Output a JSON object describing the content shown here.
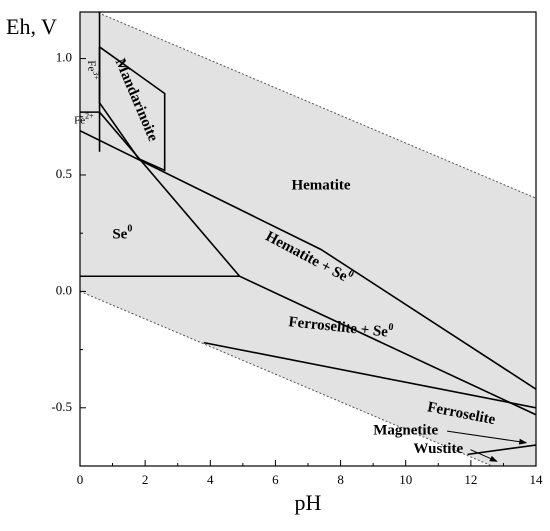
{
  "chart_data": {
    "type": "area",
    "xlabel": "pH",
    "ylabel": "Eh, V",
    "xlim": [
      0,
      14
    ],
    "ylim": [
      -0.75,
      1.2
    ],
    "x_ticks": [
      0,
      2,
      4,
      6,
      8,
      10,
      12,
      14
    ],
    "x_tick_labels": [
      "0",
      "2",
      "4",
      "6",
      "8",
      "10",
      "12",
      "14"
    ],
    "y_ticks": [
      1.0,
      0.5,
      0.0,
      -0.5
    ],
    "y_tick_labels": [
      "1.0",
      "0.5",
      "0.0",
      "-0.5"
    ],
    "grid": false,
    "stability_field": {
      "upper": [
        [
          0,
          1.23
        ],
        [
          14,
          0.4
        ]
      ],
      "lower": [
        [
          0,
          0.0
        ],
        [
          14,
          -0.83
        ]
      ],
      "fill": "#e2e2e2"
    },
    "boundaries": [
      {
        "points": [
          [
            0.6,
            1.24
          ],
          [
            0.6,
            0.6
          ]
        ]
      },
      {
        "points": [
          [
            0.6,
            1.05
          ],
          [
            2.6,
            0.85
          ],
          [
            2.6,
            0.52
          ],
          [
            1.8,
            0.57
          ],
          [
            0.6,
            0.81
          ],
          [
            0.6,
            1.05
          ]
        ]
      },
      {
        "points": [
          [
            0,
            0.77
          ],
          [
            0.6,
            0.77
          ]
        ]
      },
      {
        "points": [
          [
            0,
            0.69
          ],
          [
            7.4,
            0.18
          ],
          [
            14,
            -0.42
          ]
        ]
      },
      {
        "points": [
          [
            0,
            0.065
          ],
          [
            4.9,
            0.065
          ]
        ]
      },
      {
        "points": [
          [
            0.6,
            0.77
          ],
          [
            4.9,
            0.065
          ],
          [
            14,
            -0.53
          ]
        ]
      },
      {
        "points": [
          [
            3.8,
            -0.22
          ],
          [
            14,
            -0.5
          ]
        ]
      },
      {
        "points": [
          [
            11.9,
            -0.7
          ],
          [
            14,
            -0.66
          ]
        ]
      }
    ],
    "regions": [
      {
        "name": "Hematite",
        "x": 7.4,
        "y": 0.45
      },
      {
        "name": "Mandarinoite",
        "x": 1.7,
        "y": 0.82,
        "rotation": 67
      },
      {
        "name": "Se",
        "superscript": "0",
        "x": 1.3,
        "y": 0.24
      },
      {
        "name": "Hematite + Se",
        "superscript": "0",
        "x": 7.0,
        "y": 0.14,
        "rotation": 28
      },
      {
        "name": "Ferroselite + Se",
        "superscript": "0",
        "x": 8.0,
        "y": -0.16,
        "rotation": 6
      },
      {
        "name": "Ferroselite",
        "x": 11.7,
        "y": -0.53,
        "rotation": 11
      },
      {
        "name": "Fe",
        "superscript": "3+",
        "x": 0.35,
        "y": 0.95,
        "rotation": 88
      },
      {
        "name": "Fe",
        "superscript": "2+",
        "x": 0.12,
        "y": 0.735,
        "rotation": 0
      }
    ],
    "callouts": [
      {
        "name": "Magnetite",
        "label_x": 10.0,
        "label_y": -0.6,
        "to": [
          13.7,
          -0.65
        ]
      },
      {
        "name": "Wustite",
        "label_x": 11.0,
        "label_y": -0.68,
        "to": [
          12.8,
          -0.73
        ]
      }
    ]
  }
}
